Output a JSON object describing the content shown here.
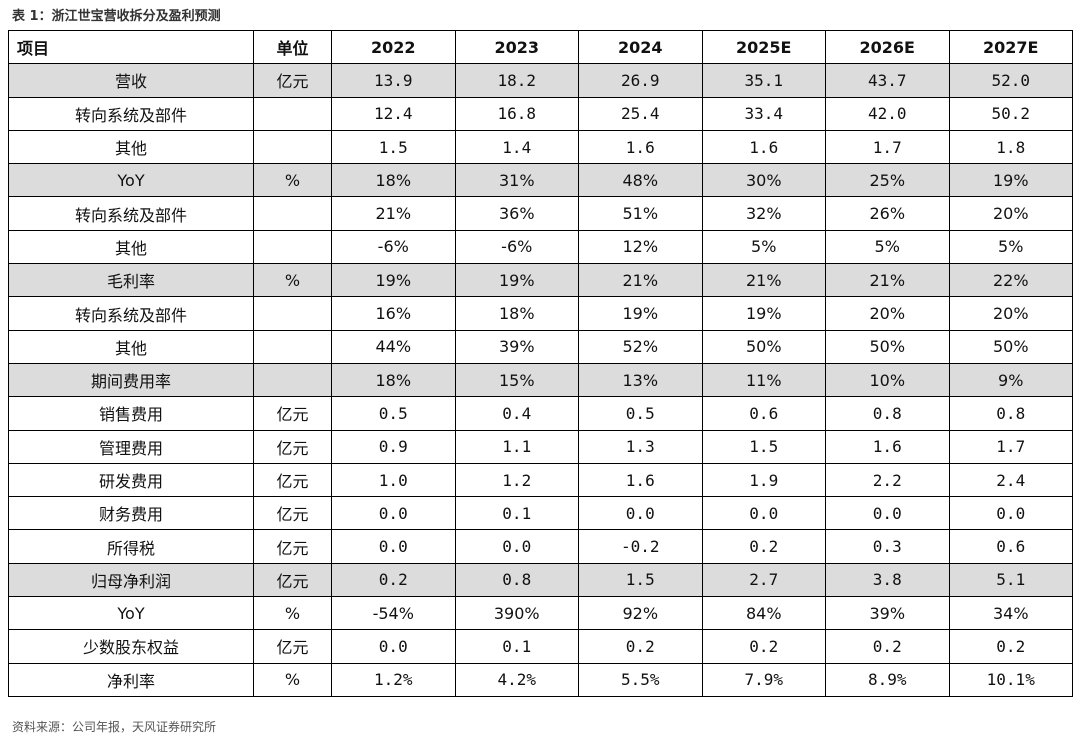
{
  "caption": "表 1：浙江世宝营收拆分及盈利预测",
  "headers": [
    "项目",
    "单位",
    "2022",
    "2023",
    "2024",
    "2025E",
    "2026E",
    "2027E"
  ],
  "rows": [
    {
      "label": "营收",
      "unit": "亿元",
      "values": [
        "13.9",
        "18.2",
        "26.9",
        "35.1",
        "43.7",
        "52.0"
      ],
      "indent": 0,
      "shaded": true,
      "fmt": "mono"
    },
    {
      "label": "转向系统及部件",
      "unit": "",
      "values": [
        "12.4",
        "16.8",
        "25.4",
        "33.4",
        "42.0",
        "50.2"
      ],
      "indent": 1,
      "shaded": false,
      "fmt": "mono"
    },
    {
      "label": "其他",
      "unit": "",
      "values": [
        "1.5",
        "1.4",
        "1.6",
        "1.6",
        "1.7",
        "1.8"
      ],
      "indent": 2,
      "shaded": false,
      "fmt": "mono"
    },
    {
      "label": "YoY",
      "unit": "%",
      "values": [
        "18%",
        "31%",
        "48%",
        "30%",
        "25%",
        "19%"
      ],
      "indent": 0,
      "shaded": true,
      "fmt": "small"
    },
    {
      "label": "转向系统及部件",
      "unit": "",
      "values": [
        "21%",
        "36%",
        "51%",
        "32%",
        "26%",
        "20%"
      ],
      "indent": 1,
      "shaded": false,
      "fmt": "small"
    },
    {
      "label": "其他",
      "unit": "",
      "values": [
        "-6%",
        "-6%",
        "12%",
        "5%",
        "5%",
        "5%"
      ],
      "indent": 2,
      "shaded": false,
      "fmt": "small"
    },
    {
      "label": "毛利率",
      "unit": "%",
      "values": [
        "19%",
        "19%",
        "21%",
        "21%",
        "21%",
        "22%"
      ],
      "indent": 0,
      "shaded": true,
      "fmt": "small"
    },
    {
      "label": "转向系统及部件",
      "unit": "",
      "values": [
        "16%",
        "18%",
        "19%",
        "19%",
        "20%",
        "20%"
      ],
      "indent": 1,
      "shaded": false,
      "fmt": "small"
    },
    {
      "label": "其他",
      "unit": "",
      "values": [
        "44%",
        "39%",
        "52%",
        "50%",
        "50%",
        "50%"
      ],
      "indent": 2,
      "shaded": false,
      "fmt": "small"
    },
    {
      "label": "期间费用率",
      "unit": "",
      "values": [
        "18%",
        "15%",
        "13%",
        "11%",
        "10%",
        "9%"
      ],
      "indent": 0,
      "shaded": true,
      "fmt": "small"
    },
    {
      "label": "销售费用",
      "unit": "亿元",
      "values": [
        "0.5",
        "0.4",
        "0.5",
        "0.6",
        "0.8",
        "0.8"
      ],
      "indent": 3,
      "shaded": false,
      "fmt": "mono"
    },
    {
      "label": "管理费用",
      "unit": "亿元",
      "values": [
        "0.9",
        "1.1",
        "1.3",
        "1.5",
        "1.6",
        "1.7"
      ],
      "indent": 3,
      "shaded": false,
      "fmt": "mono"
    },
    {
      "label": "研发费用",
      "unit": "亿元",
      "values": [
        "1.0",
        "1.2",
        "1.6",
        "1.9",
        "2.2",
        "2.4"
      ],
      "indent": 3,
      "shaded": false,
      "fmt": "mono"
    },
    {
      "label": "财务费用",
      "unit": "亿元",
      "values": [
        "0.0",
        "0.1",
        "0.0",
        "0.0",
        "0.0",
        "0.0"
      ],
      "indent": 3,
      "shaded": false,
      "fmt": "mono"
    },
    {
      "label": "所得税",
      "unit": "亿元",
      "values": [
        "0.0",
        "0.0",
        "-0.2",
        "0.2",
        "0.3",
        "0.6"
      ],
      "indent": 3,
      "shaded": false,
      "fmt": "mono"
    },
    {
      "label": "归母净利润",
      "unit": "亿元",
      "values": [
        "0.2",
        "0.8",
        "1.5",
        "2.7",
        "3.8",
        "5.1"
      ],
      "indent": 0,
      "shaded": true,
      "fmt": "mono"
    },
    {
      "label": "YoY",
      "unit": "%",
      "values": [
        "-54%",
        "390%",
        "92%",
        "84%",
        "39%",
        "34%"
      ],
      "indent": 0,
      "shaded": false,
      "fmt": "small"
    },
    {
      "label": "少数股东权益",
      "unit": "亿元",
      "values": [
        "0.0",
        "0.1",
        "0.2",
        "0.2",
        "0.2",
        "0.2"
      ],
      "indent": 0,
      "shaded": false,
      "fmt": "mono"
    },
    {
      "label": "净利率",
      "unit": "%",
      "values": [
        "1.2%",
        "4.2%",
        "5.5%",
        "7.9%",
        "8.9%",
        "10.1%"
      ],
      "indent": 0,
      "shaded": false,
      "fmt": "mono"
    }
  ],
  "source": "资料来源：公司年报，天风证券研究所"
}
